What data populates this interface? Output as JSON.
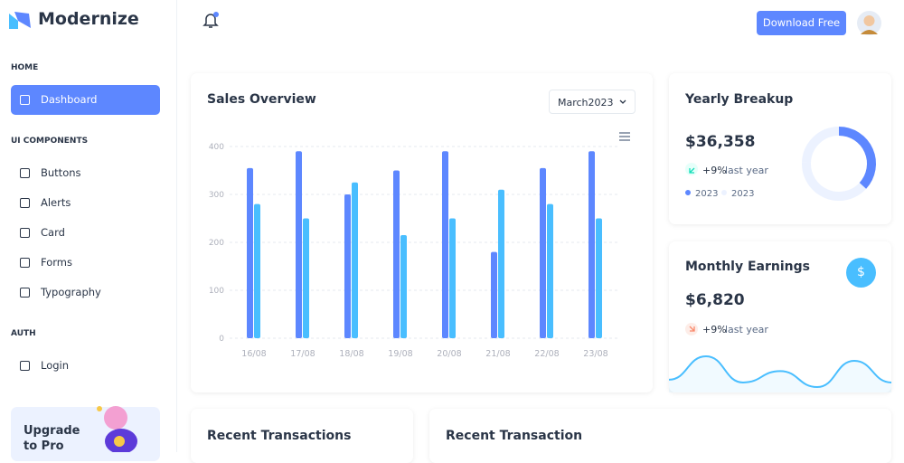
{
  "sidebar": {
    "brand": "Modernize",
    "sections": [
      {
        "title": "HOME",
        "items": [
          "Dashboard"
        ]
      },
      {
        "title": "UI COMPONENTS",
        "items": [
          "Buttons",
          "Alerts",
          "Card",
          "Forms",
          "Typography"
        ]
      },
      {
        "title": "AUTH",
        "items": [
          "Login"
        ]
      }
    ],
    "promo": "Upgrade to Pro"
  },
  "header": {
    "button": "Download Free"
  },
  "sales_filter": "March2023",
  "chart_data": [
    {
      "type": "bar",
      "title": "Sales Overview",
      "categories": [
        "16/08",
        "17/08",
        "18/08",
        "19/08",
        "20/08",
        "21/08",
        "22/08",
        "23/08"
      ],
      "series": [
        {
          "color": "#5d87ff",
          "values": [
            355,
            390,
            300,
            350,
            390,
            180,
            355,
            390
          ]
        },
        {
          "color": "#49beff",
          "values": [
            280,
            250,
            325,
            215,
            250,
            310,
            280,
            250
          ]
        }
      ],
      "ylim": [
        0,
        400
      ],
      "yticks": [
        0,
        100,
        200,
        300,
        400
      ],
      "grid": true
    },
    {
      "type": "donut",
      "title": "Yearly Breakup",
      "amount": "$36,358",
      "change": "+9%",
      "change_text": "last year",
      "values": [
        38,
        40,
        25
      ],
      "colors": [
        "#5d87ff",
        "#ecf2ff",
        "#ecf2ff"
      ],
      "legend": [
        {
          "label": "2023",
          "color": "#5d87ff"
        },
        {
          "label": "2023",
          "color": "#ecf2ff"
        }
      ]
    },
    {
      "type": "area",
      "title": "Monthly Earnings",
      "amount": "$6,820",
      "change": "+9%",
      "change_text": "last year",
      "icon": "$",
      "values": [
        25,
        66,
        20,
        40,
        12,
        58,
        20
      ],
      "color": "#49beff"
    }
  ],
  "cards": [
    "Recent Transactions",
    "Recent Transaction"
  ]
}
